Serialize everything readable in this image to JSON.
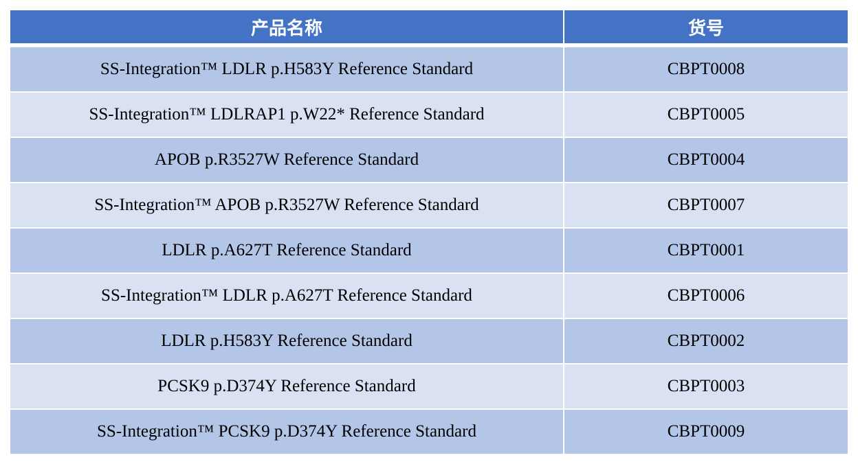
{
  "table": {
    "headers": [
      "产品名称",
      "货号"
    ],
    "rows": [
      {
        "name": "SS-Integration™ LDLR p.H583Y Reference Standard",
        "code": "CBPT0008"
      },
      {
        "name": "SS-Integration™ LDLRAP1 p.W22* Reference Standard",
        "code": "CBPT0005"
      },
      {
        "name": "APOB p.R3527W Reference Standard",
        "code": "CBPT0004"
      },
      {
        "name": "SS-Integration™ APOB p.R3527W Reference Standard",
        "code": "CBPT0007"
      },
      {
        "name": "LDLR p.A627T Reference Standard",
        "code": "CBPT0001"
      },
      {
        "name": "SS-Integration™ LDLR p.A627T Reference Standard",
        "code": "CBPT0006"
      },
      {
        "name": "LDLR p.H583Y Reference Standard",
        "code": "CBPT0002"
      },
      {
        "name": "PCSK9 p.D374Y Reference Standard",
        "code": "CBPT0003"
      },
      {
        "name": "SS-Integration™ PCSK9 p.D374Y Reference Standard",
        "code": "CBPT0009"
      }
    ],
    "colors": {
      "header": "#4472C4",
      "row_dark": "#B4C6E7",
      "row_light": "#D9E1F2"
    }
  }
}
